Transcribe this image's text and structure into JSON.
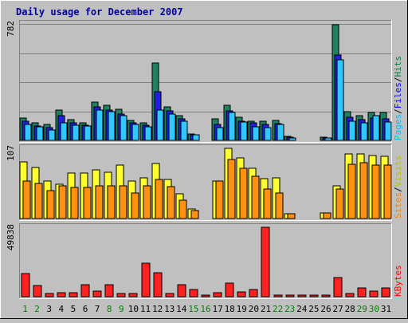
{
  "chart_data": {
    "type": "bar",
    "title": "Daily usage for December 2007",
    "x": [
      "1",
      "2",
      "3",
      "4",
      "5",
      "6",
      "7",
      "8",
      "9",
      "10",
      "11",
      "12",
      "13",
      "14",
      "15",
      "16",
      "17",
      "18",
      "19",
      "20",
      "21",
      "22",
      "23",
      "24",
      "25",
      "26",
      "27",
      "28",
      "29",
      "30",
      "31"
    ],
    "weekend_days": [
      "1",
      "2",
      "8",
      "9",
      "15",
      "16",
      "22",
      "23",
      "29",
      "30"
    ],
    "panels": [
      {
        "name": "hits-files-pages",
        "ymax_label": "782",
        "ymax": 782,
        "legend": [
          {
            "text": "Hits",
            "color": "#008040"
          },
          {
            "text": "/",
            "color": "#000000"
          },
          {
            "text": "Files",
            "color": "#0000ff"
          },
          {
            "text": "/",
            "color": "#000000"
          },
          {
            "text": "Pages",
            "color": "#00c0ff"
          }
        ],
        "series": [
          {
            "name": "Hits",
            "color": "#208060",
            "values": [
              148,
              117,
              105,
              203,
              138,
              119,
              259,
              233,
              207,
              136,
              118,
              519,
              224,
              165,
              45,
              0,
              145,
              234,
              153,
              131,
              130,
              133,
              25,
              0,
              0,
              20,
              777,
              194,
              165,
              190,
              190
            ]
          },
          {
            "name": "Files",
            "color": "#2020e0",
            "values": [
              128,
              97,
              85,
              165,
              118,
              102,
              224,
              205,
              175,
              116,
              100,
              326,
              199,
              145,
              40,
              0,
              108,
              200,
              130,
              118,
              106,
              112,
              20,
              0,
              0,
              18,
              572,
              155,
              140,
              150,
              145
            ]
          },
          {
            "name": "Pages",
            "color": "#30c8ff",
            "values": [
              108,
              90,
              70,
              116,
              100,
              95,
              206,
              193,
              165,
              105,
              92,
              206,
              178,
              126,
              35,
              0,
              85,
              185,
              125,
              90,
              85,
              107,
              15,
              0,
              0,
              15,
              542,
              130,
              116,
              165,
              122
            ]
          }
        ]
      },
      {
        "name": "visits-sites",
        "ymax_label": "107",
        "ymax": 107,
        "legend": [
          {
            "text": "Visits",
            "color": "#c0c000"
          },
          {
            "text": "/",
            "color": "#000000"
          },
          {
            "text": "Sites",
            "color": "#ff8000"
          }
        ],
        "series": [
          {
            "name": "Visits",
            "color": "#ffff30",
            "values": [
              86,
              78,
              57,
              52,
              69,
              69,
              74,
              70,
              81,
              57,
              62,
              84,
              59,
              38,
              15,
              0,
              57,
              107,
              93,
              77,
              61,
              62,
              7,
              0,
              0,
              8,
              50,
              98,
              98,
              96,
              95
            ]
          },
          {
            "name": "Sites",
            "color": "#ff9010",
            "values": [
              57,
              54,
              42,
              50,
              47,
              48,
              50,
              50,
              50,
              39,
              50,
              60,
              49,
              28,
              12,
              0,
              57,
              90,
              76,
              64,
              45,
              39,
              7,
              0,
              0,
              8,
              45,
              83,
              85,
              82,
              81
            ]
          }
        ]
      },
      {
        "name": "kbytes",
        "ymax_label": "49838",
        "ymax": 49838,
        "legend": [
          {
            "text": "KBytes",
            "color": "#ff0000"
          }
        ],
        "series": [
          {
            "name": "KBytes",
            "color": "#ff2020",
            "values": [
              16800,
              8200,
              2300,
              3000,
              2900,
              8500,
              4000,
              8500,
              2300,
              2100,
              23800,
              17400,
              2300,
              8600,
              5400,
              100,
              3100,
              9700,
              3600,
              5300,
              49838,
              1000,
              900,
              100,
              100,
              1200,
              13900,
              2300,
              6400,
              3800,
              6200
            ]
          }
        ]
      }
    ]
  }
}
